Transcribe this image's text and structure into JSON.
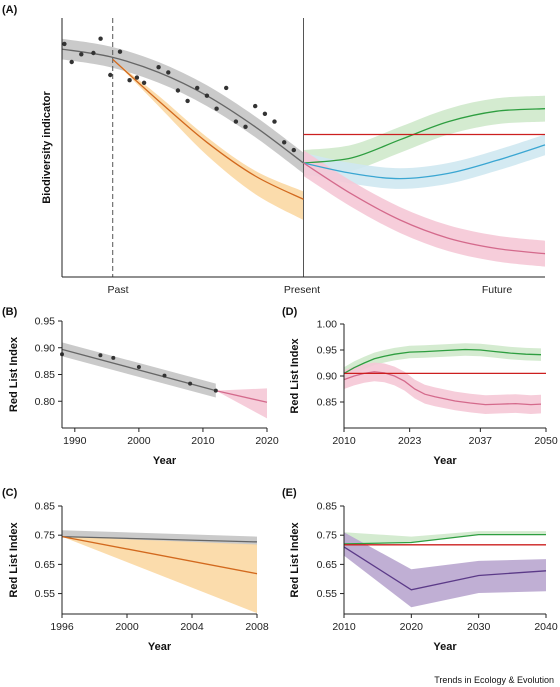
{
  "credit": "Trends in Ecology & Evolution",
  "colors": {
    "grey": "#666666",
    "grey_band": "#c4c4c4",
    "orange": "#d2691e",
    "orange_band": "#fbd8a3",
    "green": "#2e9e40",
    "green_band": "#cfe9cb",
    "blue": "#3aa6d2",
    "blue_band": "#cfe8f1",
    "pink": "#d46a8c",
    "pink_band": "#f5c8d6",
    "red": "#cc1f1f",
    "purple": "#5b3a88",
    "purple_band": "#b9a6cf",
    "dots": "#333333"
  },
  "chart_data": [
    {
      "panel": "(A)",
      "type": "line",
      "ylabel": "Biodiversity indicator",
      "x_ticks": [
        "Past",
        "Present",
        "Future"
      ],
      "xlim": [
        0,
        100
      ],
      "ylim": [
        0,
        100
      ],
      "past_marker_x": 10.5,
      "present_x": 50,
      "series": [
        {
          "color": "grey",
          "x": [
            0,
            10,
            20,
            30,
            40,
            50
          ],
          "values": [
            88,
            85,
            79,
            70,
            58,
            44
          ],
          "band": 4
        },
        {
          "color": "orange",
          "x": [
            10.5,
            20,
            30,
            40,
            50
          ],
          "values": [
            84,
            68,
            52,
            39,
            30
          ],
          "band_lo": [
            0,
            2,
            5,
            7,
            8
          ],
          "band_hi": [
            0,
            2,
            2,
            2,
            3
          ]
        },
        {
          "color": "green",
          "x": [
            50,
            60,
            70,
            80,
            90,
            100
          ],
          "values": [
            44,
            46,
            53,
            60,
            64,
            65
          ],
          "band": 5
        },
        {
          "color": "blue",
          "x": [
            50,
            60,
            70,
            80,
            90,
            100
          ],
          "values": [
            44,
            40,
            38,
            40,
            45,
            51
          ],
          "band": 4
        },
        {
          "color": "pink",
          "x": [
            50,
            60,
            70,
            80,
            90,
            100
          ],
          "values": [
            44,
            32,
            22,
            15,
            11,
            9
          ],
          "band": 5
        },
        {
          "color": "red",
          "x": [
            50,
            100
          ],
          "values": [
            55,
            55
          ]
        }
      ],
      "points": [
        [
          0.5,
          90
        ],
        [
          2,
          83
        ],
        [
          4,
          86
        ],
        [
          6.5,
          86.5
        ],
        [
          8,
          92
        ],
        [
          10,
          78
        ],
        [
          12,
          87
        ],
        [
          14,
          76
        ],
        [
          15.5,
          77
        ],
        [
          17,
          75
        ],
        [
          20,
          81
        ],
        [
          22,
          79
        ],
        [
          24,
          72
        ],
        [
          26,
          68
        ],
        [
          28,
          73
        ],
        [
          30,
          70
        ],
        [
          32,
          65
        ],
        [
          34,
          73
        ],
        [
          36,
          60
        ],
        [
          38,
          58
        ],
        [
          40,
          66
        ],
        [
          42,
          63
        ],
        [
          44,
          60
        ],
        [
          46,
          52
        ],
        [
          48,
          49
        ]
      ]
    },
    {
      "panel": "(B)",
      "type": "line",
      "xlabel": "Year",
      "ylabel": "Red List Index",
      "xlim": [
        1988,
        2020
      ],
      "ylim": [
        0.75,
        0.95
      ],
      "x_ticks": [
        1990,
        2000,
        2010,
        2020
      ],
      "y_ticks": [
        "0.80",
        "0.85",
        "0.90",
        "0.95"
      ],
      "series": [
        {
          "color": "grey",
          "x": [
            1988,
            2012
          ],
          "values": [
            0.897,
            0.82
          ],
          "band": 0.013
        },
        {
          "color": "pink",
          "x": [
            2012,
            2020
          ],
          "values": [
            0.82,
            0.798
          ],
          "band_hi": [
            0,
            0.026
          ],
          "band_lo": [
            0,
            0.03
          ]
        }
      ],
      "points": [
        [
          1988,
          0.888
        ],
        [
          1994,
          0.886
        ],
        [
          1996,
          0.881
        ],
        [
          2000,
          0.864
        ],
        [
          2004,
          0.848
        ],
        [
          2008,
          0.833
        ],
        [
          2012,
          0.82
        ]
      ]
    },
    {
      "panel": "(C)",
      "type": "line",
      "xlabel": "Year",
      "ylabel": "Red List Index",
      "xlim": [
        1996,
        2008
      ],
      "ylim": [
        0.48,
        0.85
      ],
      "x_ticks": [
        1996,
        2000,
        2004,
        2008
      ],
      "y_ticks": [
        "0.55",
        "0.65",
        "0.75",
        "0.85"
      ],
      "series": [
        {
          "color": "grey",
          "x": [
            1996,
            2008
          ],
          "values": [
            0.745,
            0.727
          ],
          "band_hi": [
            0.022,
            0.018
          ],
          "band_lo": [
            0,
            0.012
          ]
        },
        {
          "color": "orange",
          "x": [
            1996,
            2008
          ],
          "values": [
            0.745,
            0.618
          ],
          "band_hi": [
            0,
            0.1
          ],
          "band_lo": [
            0,
            0.135
          ]
        }
      ]
    },
    {
      "panel": "(D)",
      "type": "line",
      "xlabel": "Year",
      "ylabel": "Red List Index",
      "xlim": [
        2010,
        2050
      ],
      "ylim": [
        0.8,
        1.0
      ],
      "x_ticks": [
        2010,
        2023,
        2037,
        2050
      ],
      "y_ticks": [
        "0.85",
        "0.90",
        "0.95",
        "1.00"
      ],
      "series": [
        {
          "color": "green",
          "x": [
            2010,
            2012,
            2014,
            2016,
            2018,
            2020,
            2023,
            2026,
            2030,
            2034,
            2037,
            2040,
            2043,
            2046,
            2049
          ],
          "values": [
            0.905,
            0.916,
            0.925,
            0.933,
            0.938,
            0.942,
            0.946,
            0.947,
            0.949,
            0.951,
            0.95,
            0.947,
            0.944,
            0.942,
            0.941
          ],
          "band": 0.012
        },
        {
          "color": "pink",
          "x": [
            2010,
            2012,
            2014,
            2016,
            2018,
            2020,
            2022,
            2024,
            2026,
            2028,
            2030,
            2032,
            2035,
            2038,
            2041,
            2044,
            2047,
            2049
          ],
          "values": [
            0.893,
            0.9,
            0.905,
            0.908,
            0.906,
            0.9,
            0.89,
            0.875,
            0.865,
            0.86,
            0.856,
            0.852,
            0.848,
            0.845,
            0.846,
            0.847,
            0.845,
            0.846
          ],
          "band": 0.018
        },
        {
          "color": "red",
          "x": [
            2010,
            2050
          ],
          "values": [
            0.905,
            0.905
          ]
        }
      ]
    },
    {
      "panel": "(E)",
      "type": "line",
      "xlabel": "Year",
      "ylabel": "Red List Index",
      "xlim": [
        2010,
        2040
      ],
      "ylim": [
        0.48,
        0.85
      ],
      "x_ticks": [
        2010,
        2020,
        2030,
        2040
      ],
      "y_ticks": [
        "0.55",
        "0.65",
        "0.75",
        "0.85"
      ],
      "series": [
        {
          "color": "green",
          "x": [
            2010,
            2020,
            2030,
            2040
          ],
          "values": [
            0.72,
            0.725,
            0.752,
            0.752
          ],
          "band_hi": [
            0.04,
            0.02,
            0.012,
            0.012
          ],
          "band_lo": [
            0.0,
            0.0,
            0.0,
            0.0
          ]
        },
        {
          "color": "red",
          "x": [
            2010,
            2040
          ],
          "values": [
            0.717,
            0.717
          ]
        },
        {
          "color": "purple",
          "x": [
            2010,
            2020,
            2030,
            2040
          ],
          "values": [
            0.71,
            0.563,
            0.612,
            0.628
          ],
          "band_hi": [
            0.05,
            0.07,
            0.05,
            0.04
          ],
          "band_lo": [
            0.03,
            0.06,
            0.06,
            0.07
          ]
        }
      ]
    }
  ]
}
